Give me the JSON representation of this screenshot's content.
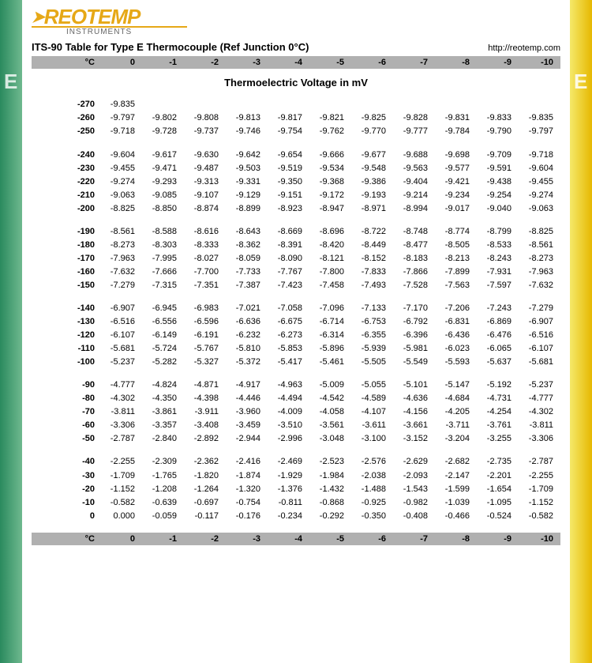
{
  "logo": {
    "main": "REOTEMP",
    "sub": "INSTRUMENTS"
  },
  "title": "ITS-90 Table for Type E Thermocouple (Ref Junction 0°C)",
  "url": "http://reotemp.com",
  "subtitle": "Thermoelectric Voltage in mV",
  "side_letter": "E",
  "colors": {
    "left_grad_a": "#2a8a5e",
    "left_grad_b": "#6fb98f",
    "right_grad_a": "#f5e96a",
    "right_grad_b": "#e6b800",
    "header_bg": "#b0b0b0",
    "logo_color": "#e6a817"
  },
  "columns": [
    "°C",
    "0",
    "-1",
    "-2",
    "-3",
    "-4",
    "-5",
    "-6",
    "-7",
    "-8",
    "-9",
    "-10"
  ],
  "blocks": [
    [
      {
        "t": "-270",
        "v": [
          "-9.835",
          "",
          "",
          "",
          "",
          "",
          "",
          "",
          "",
          "",
          ""
        ]
      },
      {
        "t": "-260",
        "v": [
          "-9.797",
          "-9.802",
          "-9.808",
          "-9.813",
          "-9.817",
          "-9.821",
          "-9.825",
          "-9.828",
          "-9.831",
          "-9.833",
          "-9.835"
        ]
      },
      {
        "t": "-250",
        "v": [
          "-9.718",
          "-9.728",
          "-9.737",
          "-9.746",
          "-9.754",
          "-9.762",
          "-9.770",
          "-9.777",
          "-9.784",
          "-9.790",
          "-9.797"
        ]
      }
    ],
    [
      {
        "t": "-240",
        "v": [
          "-9.604",
          "-9.617",
          "-9.630",
          "-9.642",
          "-9.654",
          "-9.666",
          "-9.677",
          "-9.688",
          "-9.698",
          "-9.709",
          "-9.718"
        ]
      },
      {
        "t": "-230",
        "v": [
          "-9.455",
          "-9.471",
          "-9.487",
          "-9.503",
          "-9.519",
          "-9.534",
          "-9.548",
          "-9.563",
          "-9.577",
          "-9.591",
          "-9.604"
        ]
      },
      {
        "t": "-220",
        "v": [
          "-9.274",
          "-9.293",
          "-9.313",
          "-9.331",
          "-9.350",
          "-9.368",
          "-9.386",
          "-9.404",
          "-9.421",
          "-9.438",
          "-9.455"
        ]
      },
      {
        "t": "-210",
        "v": [
          "-9.063",
          "-9.085",
          "-9.107",
          "-9.129",
          "-9.151",
          "-9.172",
          "-9.193",
          "-9.214",
          "-9.234",
          "-9.254",
          "-9.274"
        ]
      },
      {
        "t": "-200",
        "v": [
          "-8.825",
          "-8.850",
          "-8.874",
          "-8.899",
          "-8.923",
          "-8.947",
          "-8.971",
          "-8.994",
          "-9.017",
          "-9.040",
          "-9.063"
        ]
      }
    ],
    [
      {
        "t": "-190",
        "v": [
          "-8.561",
          "-8.588",
          "-8.616",
          "-8.643",
          "-8.669",
          "-8.696",
          "-8.722",
          "-8.748",
          "-8.774",
          "-8.799",
          "-8.825"
        ]
      },
      {
        "t": "-180",
        "v": [
          "-8.273",
          "-8.303",
          "-8.333",
          "-8.362",
          "-8.391",
          "-8.420",
          "-8.449",
          "-8.477",
          "-8.505",
          "-8.533",
          "-8.561"
        ]
      },
      {
        "t": "-170",
        "v": [
          "-7.963",
          "-7.995",
          "-8.027",
          "-8.059",
          "-8.090",
          "-8.121",
          "-8.152",
          "-8.183",
          "-8.213",
          "-8.243",
          "-8.273"
        ]
      },
      {
        "t": "-160",
        "v": [
          "-7.632",
          "-7.666",
          "-7.700",
          "-7.733",
          "-7.767",
          "-7.800",
          "-7.833",
          "-7.866",
          "-7.899",
          "-7.931",
          "-7.963"
        ]
      },
      {
        "t": "-150",
        "v": [
          "-7.279",
          "-7.315",
          "-7.351",
          "-7.387",
          "-7.423",
          "-7.458",
          "-7.493",
          "-7.528",
          "-7.563",
          "-7.597",
          "-7.632"
        ]
      }
    ],
    [
      {
        "t": "-140",
        "v": [
          "-6.907",
          "-6.945",
          "-6.983",
          "-7.021",
          "-7.058",
          "-7.096",
          "-7.133",
          "-7.170",
          "-7.206",
          "-7.243",
          "-7.279"
        ]
      },
      {
        "t": "-130",
        "v": [
          "-6.516",
          "-6.556",
          "-6.596",
          "-6.636",
          "-6.675",
          "-6.714",
          "-6.753",
          "-6.792",
          "-6.831",
          "-6.869",
          "-6.907"
        ]
      },
      {
        "t": "-120",
        "v": [
          "-6.107",
          "-6.149",
          "-6.191",
          "-6.232",
          "-6.273",
          "-6.314",
          "-6.355",
          "-6.396",
          "-6.436",
          "-6.476",
          "-6.516"
        ]
      },
      {
        "t": "-110",
        "v": [
          "-5.681",
          "-5.724",
          "-5.767",
          "-5.810",
          "-5.853",
          "-5.896",
          "-5.939",
          "-5.981",
          "-6.023",
          "-6.065",
          "-6.107"
        ]
      },
      {
        "t": "-100",
        "v": [
          "-5.237",
          "-5.282",
          "-5.327",
          "-5.372",
          "-5.417",
          "-5.461",
          "-5.505",
          "-5.549",
          "-5.593",
          "-5.637",
          "-5.681"
        ]
      }
    ],
    [
      {
        "t": "-90",
        "v": [
          "-4.777",
          "-4.824",
          "-4.871",
          "-4.917",
          "-4.963",
          "-5.009",
          "-5.055",
          "-5.101",
          "-5.147",
          "-5.192",
          "-5.237"
        ]
      },
      {
        "t": "-80",
        "v": [
          "-4.302",
          "-4.350",
          "-4.398",
          "-4.446",
          "-4.494",
          "-4.542",
          "-4.589",
          "-4.636",
          "-4.684",
          "-4.731",
          "-4.777"
        ]
      },
      {
        "t": "-70",
        "v": [
          "-3.811",
          "-3.861",
          "-3.911",
          "-3.960",
          "-4.009",
          "-4.058",
          "-4.107",
          "-4.156",
          "-4.205",
          "-4.254",
          "-4.302"
        ]
      },
      {
        "t": "-60",
        "v": [
          "-3.306",
          "-3.357",
          "-3.408",
          "-3.459",
          "-3.510",
          "-3.561",
          "-3.611",
          "-3.661",
          "-3.711",
          "-3.761",
          "-3.811"
        ]
      },
      {
        "t": "-50",
        "v": [
          "-2.787",
          "-2.840",
          "-2.892",
          "-2.944",
          "-2.996",
          "-3.048",
          "-3.100",
          "-3.152",
          "-3.204",
          "-3.255",
          "-3.306"
        ]
      }
    ],
    [
      {
        "t": "-40",
        "v": [
          "-2.255",
          "-2.309",
          "-2.362",
          "-2.416",
          "-2.469",
          "-2.523",
          "-2.576",
          "-2.629",
          "-2.682",
          "-2.735",
          "-2.787"
        ]
      },
      {
        "t": "-30",
        "v": [
          "-1.709",
          "-1.765",
          "-1.820",
          "-1.874",
          "-1.929",
          "-1.984",
          "-2.038",
          "-2.093",
          "-2.147",
          "-2.201",
          "-2.255"
        ]
      },
      {
        "t": "-20",
        "v": [
          "-1.152",
          "-1.208",
          "-1.264",
          "-1.320",
          "-1.376",
          "-1.432",
          "-1.488",
          "-1.543",
          "-1.599",
          "-1.654",
          "-1.709"
        ]
      },
      {
        "t": "-10",
        "v": [
          "-0.582",
          "-0.639",
          "-0.697",
          "-0.754",
          "-0.811",
          "-0.868",
          "-0.925",
          "-0.982",
          "-1.039",
          "-1.095",
          "-1.152"
        ]
      },
      {
        "t": "0",
        "v": [
          "0.000",
          "-0.059",
          "-0.117",
          "-0.176",
          "-0.234",
          "-0.292",
          "-0.350",
          "-0.408",
          "-0.466",
          "-0.524",
          "-0.582"
        ]
      }
    ]
  ]
}
